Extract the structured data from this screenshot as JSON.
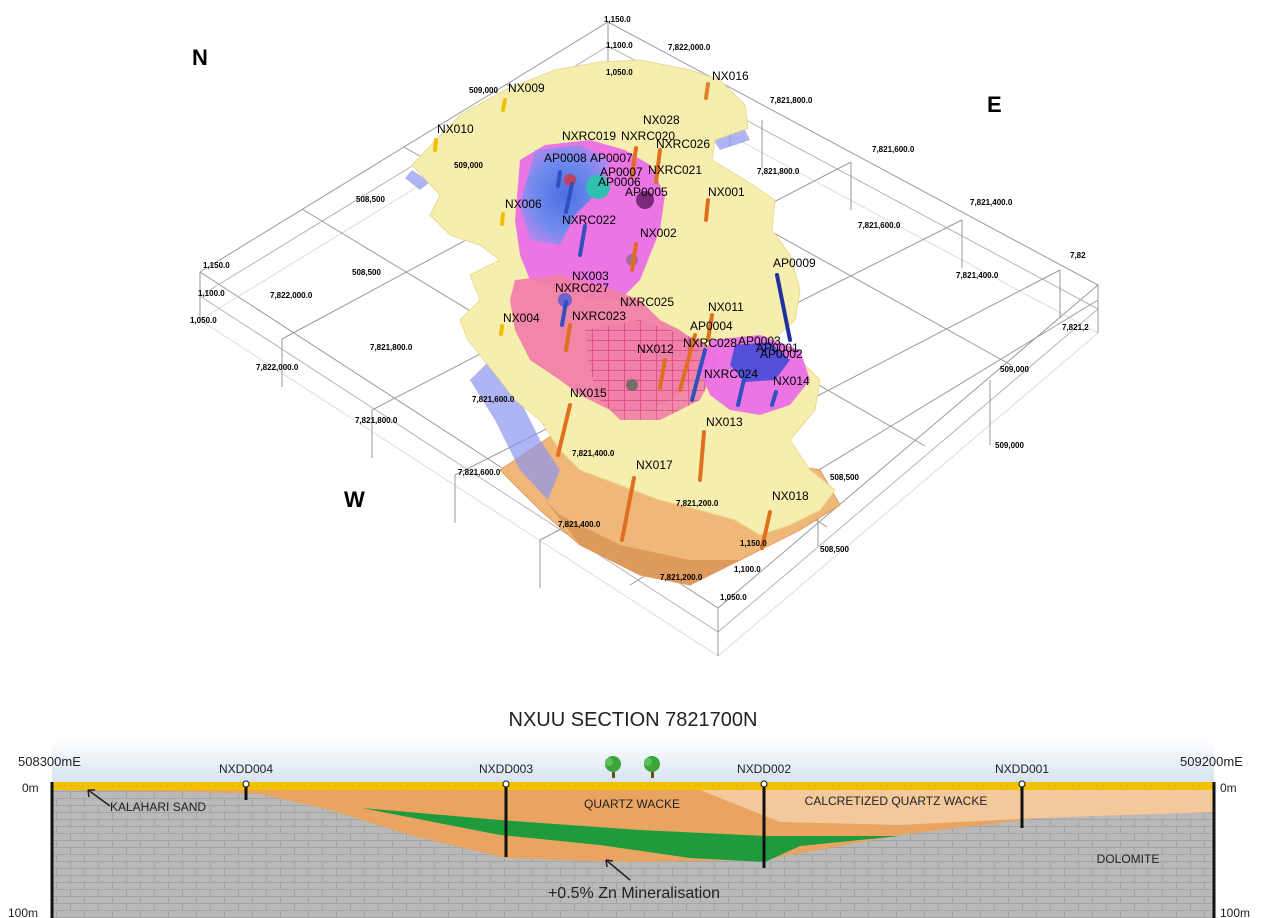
{
  "model_3d": {
    "compass": {
      "north": "N",
      "east": "E",
      "west": "W"
    },
    "grid_labels": [
      "1,150.0",
      "1,100.0",
      "1,050.0",
      "7,822,000.0",
      "7,821,800.0",
      "7,821,800.0",
      "7,821,600.0",
      "7,821,600.0",
      "7,821,400.0",
      "7,821,400.0",
      "7,82",
      "7,821,2",
      "509,000",
      "509,000",
      "509,000",
      "509,000",
      "508,500",
      "508,500",
      "508,500",
      "508,500",
      "1,150.0",
      "1,100.0",
      "1,050.0",
      "7,822,000.0",
      "7,822,000.0",
      "7,821,800.0",
      "7,821,800.0",
      "7,821,600.0",
      "7,821,600.0",
      "7,821,400.0",
      "7,821,400.0",
      "7,821,200.0",
      "7,821,200.0",
      "1,150.0",
      "1,100.0",
      "1,050.0"
    ],
    "drillholes": [
      "NX009",
      "NX016",
      "NX010",
      "NX028",
      "NXRC019",
      "NXRC020",
      "NXRC026",
      "AP0008",
      "AP0007",
      "AP0007",
      "NXRC021",
      "AP0006",
      "AP0005",
      "NX001",
      "NX006",
      "NXRC022",
      "NX002",
      "AP0009",
      "NX003",
      "NXRC027",
      "NXRC025",
      "NX011",
      "NX004",
      "NXRC023",
      "AP0004",
      "NXRC028",
      "AP0003",
      "AP0001",
      "AP0002",
      "NX012",
      "NXRC024",
      "NX014",
      "NX015",
      "NX013",
      "NX017",
      "NX018"
    ]
  },
  "section": {
    "title": "NXUU SECTION 7821700N",
    "left_easting": "508300mE",
    "right_easting": "509200mE",
    "depth_top_left": "0m",
    "depth_top_right": "0m",
    "depth_bottom_left": "100m",
    "depth_bottom_right": "100m",
    "holes": [
      "NXDD004",
      "NXDD003",
      "NXDD002",
      "NXDD001"
    ],
    "units": {
      "kalahari": "KALAHARI SAND",
      "quartz_wacke": "QUARTZ WACKE",
      "calcretized": "CALCRETIZED QUARTZ WACKE",
      "dolomite": "DOLOMITE",
      "mineralisation": "+0.5% Zn Mineralisation"
    },
    "colors": {
      "sky": "#dfe8f2",
      "sand": "#f2c200",
      "wacke": "#e8a460",
      "calcrete": "#f3c89a",
      "dolomite": "#b8b8b8",
      "ore": "#1f9a3c"
    }
  }
}
